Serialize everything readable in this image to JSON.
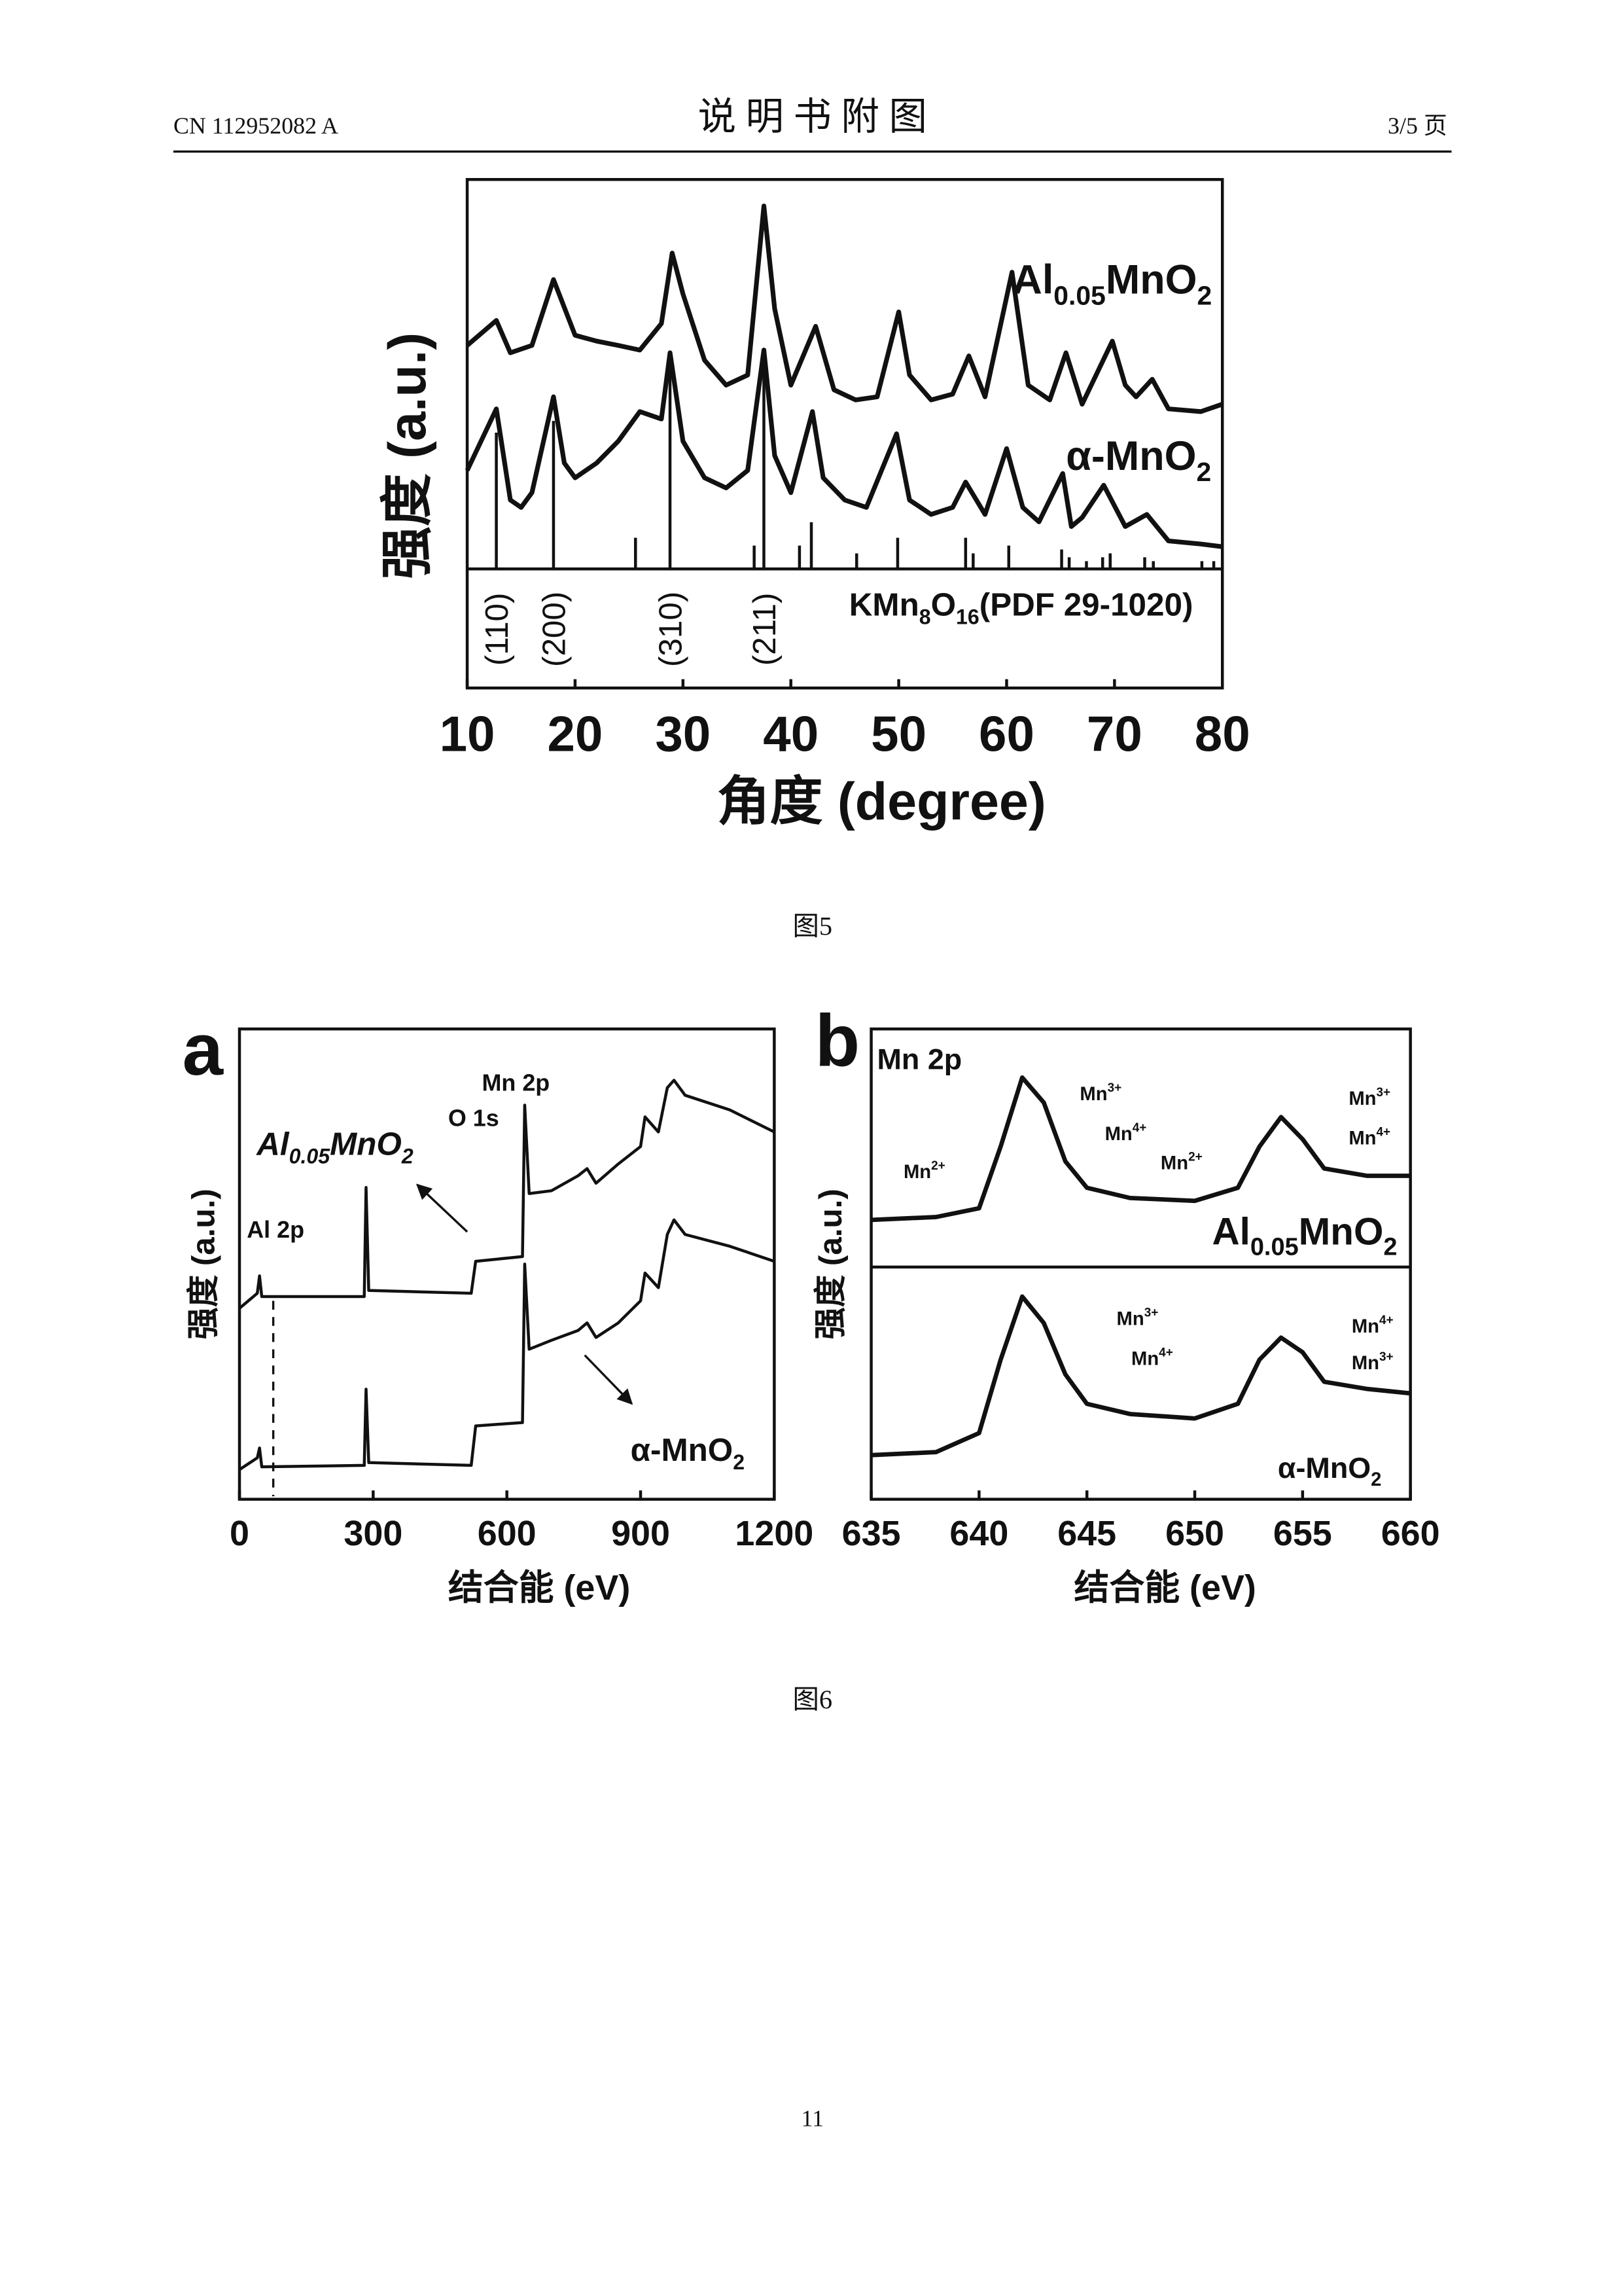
{
  "header": {
    "left": "CN 112952082 A",
    "title": "说 明 书 附 图",
    "right": "3/5 页"
  },
  "captions": [
    "图5",
    "图6"
  ],
  "page_number": "11",
  "chart_data": [
    {
      "type": "line",
      "xlabel": "角度 (degree)",
      "ylabel": "强度 (a.u.)",
      "xlim": [
        10,
        80
      ],
      "xticks": [
        10,
        20,
        30,
        40,
        50,
        60,
        70,
        80
      ],
      "ylim": [
        0,
        100
      ],
      "series": [
        {
          "name": "Al0.05MnO2",
          "color": "#111111",
          "x": [
            10,
            12.7,
            14,
            16,
            18,
            20,
            22,
            24,
            26,
            28,
            29,
            30,
            32,
            34,
            36,
            37.5,
            38.5,
            40,
            42.3,
            44,
            46,
            48,
            50,
            51,
            53,
            55,
            56.5,
            58,
            60.5,
            62,
            64,
            65.5,
            67,
            69.8,
            71,
            72,
            73.5,
            75,
            78,
            80
          ],
          "values": [
            57.4,
            63.8,
            55.5,
            57.4,
            74.3,
            60.0,
            58.5,
            57.4,
            56.2,
            63.0,
            81.1,
            70.6,
            53.6,
            47.2,
            49.8,
            93.2,
            66.8,
            47.2,
            62.3,
            46.0,
            43.4,
            44.2,
            66.0,
            49.8,
            43.4,
            44.9,
            54.7,
            44.2,
            76.2,
            47.2,
            43.4,
            55.5,
            42.3,
            58.5,
            47.2,
            44.2,
            48.7,
            41.1,
            40.4,
            42.3
          ]
        },
        {
          "name": "α-MnO2",
          "color": "#111111",
          "x": [
            10,
            12.7,
            14,
            15,
            16,
            18,
            19,
            20,
            22,
            24,
            26,
            28,
            28.8,
            30,
            32,
            34,
            36,
            37.5,
            38.5,
            40,
            42,
            43,
            45,
            47,
            49.8,
            51,
            53,
            55,
            56.2,
            58,
            60,
            61.5,
            63,
            65.2,
            66,
            67,
            69,
            71,
            73,
            75,
            78,
            80
          ],
          "values": [
            25.3,
            41.1,
            17.7,
            15.8,
            19.6,
            44.2,
            27.2,
            23.4,
            27.2,
            32.8,
            40.4,
            38.5,
            55.5,
            32.8,
            23.4,
            20.8,
            25.3,
            56.2,
            29.1,
            19.6,
            40.4,
            23.4,
            17.7,
            15.8,
            34.7,
            17.7,
            14.0,
            15.8,
            22.3,
            14.0,
            30.9,
            15.8,
            12.1,
            24.5,
            10.9,
            13.2,
            21.5,
            10.9,
            14.0,
            7.2,
            6.4,
            5.7
          ]
        }
      ],
      "reference": {
        "name": "KMn8O16(PDF 29-1020)",
        "color": "#111111",
        "x": [
          12.7,
          18.0,
          25.6,
          28.8,
          36.6,
          37.5,
          40.8,
          41.9,
          46.1,
          49.9,
          56.2,
          56.9,
          60.2,
          65.1,
          65.8,
          67.4,
          68.9,
          69.6,
          72.8,
          73.6,
          78.1,
          79.2
        ],
        "values": [
          35,
          38,
          8,
          55,
          6,
          55,
          6,
          12,
          4,
          8,
          8,
          4,
          6,
          5,
          3,
          2,
          3,
          4,
          3,
          2,
          2,
          2
        ]
      },
      "hkl": [
        {
          "label": "(110)",
          "x": 12.7
        },
        {
          "label": "(200)",
          "x": 18.0
        },
        {
          "label": "(310)",
          "x": 28.8
        },
        {
          "label": "(211)",
          "x": 37.5
        }
      ]
    },
    {
      "type": "line",
      "panel": "a",
      "xlabel": "结合能 (eV)",
      "ylabel": "强度 (a.u.)",
      "xlim": [
        0,
        1200
      ],
      "xticks": [
        0,
        300,
        600,
        900,
        1200
      ],
      "ylim": [
        0,
        100
      ],
      "series": [
        {
          "name": "Al0.05MnO2",
          "color": "#111111",
          "x": [
            0,
            40,
            45,
            50,
            280,
            284,
            290,
            520,
            530,
            635,
            640,
            650,
            700,
            760,
            780,
            800,
            850,
            900,
            910,
            940,
            960,
            975,
            1000,
            1100,
            1200
          ],
          "values": [
            40.6,
            43.8,
            47.5,
            43.1,
            43.1,
            66.3,
            44.4,
            43.8,
            50.6,
            51.6,
            83.8,
            65.0,
            65.6,
            68.8,
            70.3,
            67.2,
            71.3,
            75.0,
            81.3,
            78.1,
            87.5,
            89.1,
            85.9,
            82.8,
            78.1
          ]
        },
        {
          "name": "α-MnO2",
          "color": "#111111",
          "x": [
            0,
            40,
            45,
            50,
            280,
            284,
            290,
            520,
            530,
            635,
            640,
            650,
            700,
            760,
            780,
            800,
            850,
            900,
            910,
            940,
            960,
            975,
            1000,
            1100,
            1200
          ],
          "values": [
            6.3,
            8.8,
            10.9,
            6.9,
            7.2,
            23.4,
            7.8,
            7.2,
            15.6,
            16.3,
            50.0,
            31.9,
            33.8,
            35.9,
            37.5,
            34.4,
            37.5,
            42.2,
            48.1,
            45.0,
            56.3,
            59.4,
            56.3,
            53.8,
            50.6
          ]
        }
      ],
      "annotations": [
        "O 1s",
        "Mn 2p",
        "Al 2p"
      ]
    },
    {
      "type": "line",
      "panel": "b",
      "title": "Mn 2p",
      "xlabel": "结合能 (eV)",
      "ylabel": "强度 (a.u.)",
      "xlim": [
        635,
        660
      ],
      "xticks": [
        635,
        640,
        645,
        650,
        655,
        660
      ],
      "ylim": [
        0,
        100
      ],
      "series": [
        {
          "name": "Al0.05MnO2",
          "color": "#111111",
          "x": [
            635,
            638,
            640,
            641,
            642,
            643,
            644,
            645,
            647,
            650,
            652,
            653,
            654,
            655,
            656,
            658,
            660
          ],
          "values": [
            19.8,
            21.0,
            24.7,
            50.6,
            79.6,
            69.1,
            44.4,
            33.3,
            29.0,
            27.8,
            33.3,
            50.6,
            63.0,
            53.7,
            41.4,
            38.3,
            38.3
          ]
        },
        {
          "name": "α-MnO2",
          "color": "#111111",
          "x": [
            635,
            638,
            640,
            641,
            642,
            643,
            644,
            645,
            647,
            650,
            652,
            653,
            654,
            655,
            656,
            658,
            660
          ],
          "values": [
            19.0,
            20.3,
            28.5,
            60.1,
            87.3,
            75.9,
            53.8,
            41.1,
            36.7,
            34.8,
            41.1,
            60.1,
            69.6,
            63.3,
            50.6,
            47.5,
            45.6
          ]
        }
      ],
      "annotations": [
        "Mn3+",
        "Mn4+",
        "Mn2+",
        "Mn2+",
        "Mn3+",
        "Mn4+",
        "Mn3+",
        "Mn4+",
        "Mn4+",
        "Mn3+"
      ]
    }
  ]
}
